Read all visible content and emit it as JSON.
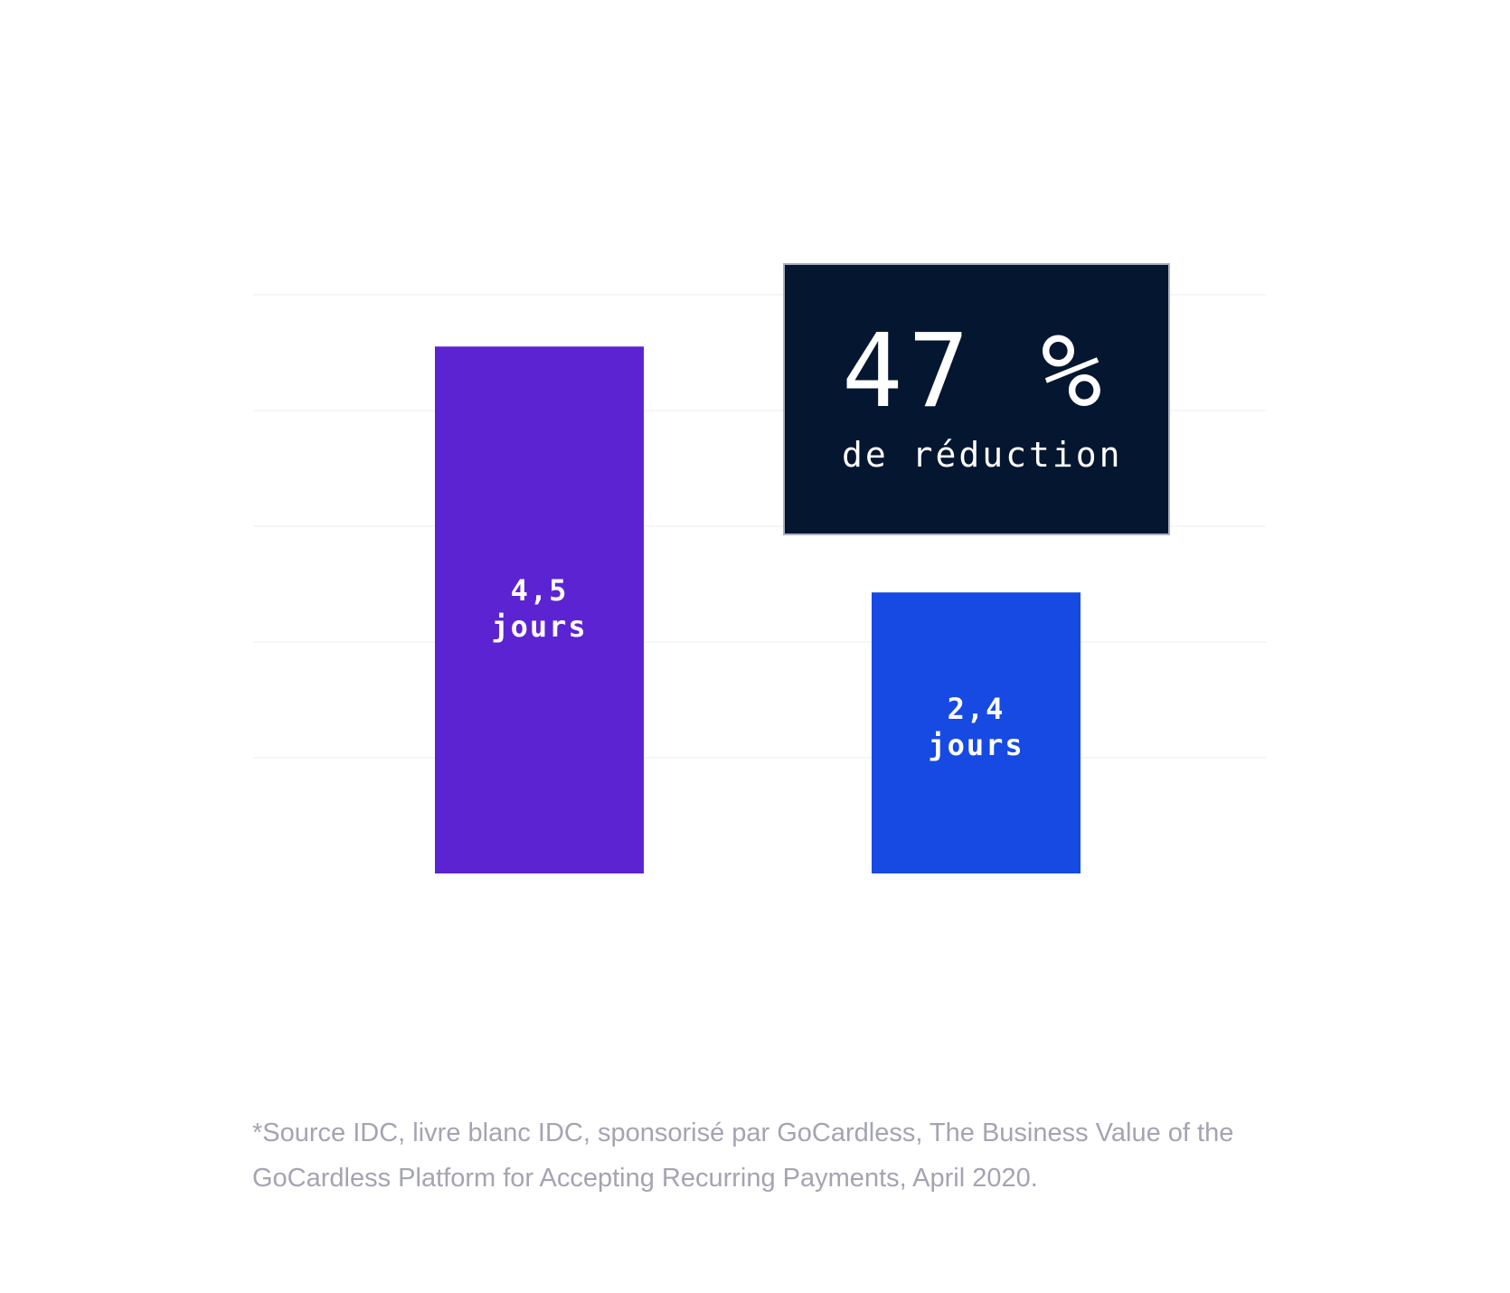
{
  "chart_data": {
    "type": "bar",
    "categories": [
      "",
      ""
    ],
    "values": [
      4.5,
      2.4
    ],
    "value_labels": [
      {
        "value_text": "4,5",
        "unit_text": "jours"
      },
      {
        "value_text": "2,4",
        "unit_text": "jours"
      }
    ],
    "bar_colors": [
      "#5c23d2",
      "#164ae3"
    ],
    "callout": {
      "value": "47 %",
      "text": "de réduction",
      "background": "#051630",
      "border": "#a8b0bf"
    },
    "title": "",
    "xlabel": "",
    "ylabel": "",
    "ylim": [
      0,
      5
    ],
    "grid": true,
    "grid_color": "#f3f3f6"
  },
  "footnote": "*Source IDC, livre blanc IDC, sponsorisé par GoCardless, The Business Value of the GoCardless Platform for Accepting Recurring Payments, April 2020."
}
